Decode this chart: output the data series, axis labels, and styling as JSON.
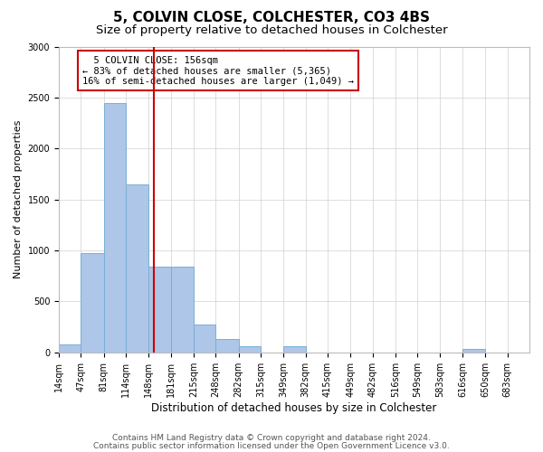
{
  "title1": "5, COLVIN CLOSE, COLCHESTER, CO3 4BS",
  "title2": "Size of property relative to detached houses in Colchester",
  "xlabel": "Distribution of detached houses by size in Colchester",
  "ylabel": "Number of detached properties",
  "footer1": "Contains HM Land Registry data © Crown copyright and database right 2024.",
  "footer2": "Contains public sector information licensed under the Open Government Licence v3.0.",
  "annotation_line1": "  5 COLVIN CLOSE: 156sqm",
  "annotation_line2": "← 83% of detached houses are smaller (5,365)",
  "annotation_line3": "16% of semi-detached houses are larger (1,049) →",
  "property_line_x": 156,
  "bar_edges": [
    14,
    47,
    81,
    114,
    148,
    181,
    215,
    248,
    282,
    315,
    349,
    382,
    415,
    449,
    482,
    516,
    549,
    583,
    616,
    650,
    683
  ],
  "bar_heights": [
    75,
    975,
    2450,
    1650,
    840,
    840,
    270,
    135,
    60,
    0,
    60,
    0,
    0,
    0,
    0,
    0,
    0,
    0,
    30,
    0,
    0
  ],
  "bar_color": "#aec6e8",
  "bar_edge_color": "#7aafd4",
  "vline_color": "#cc0000",
  "annotation_box_color": "#cc0000",
  "grid_color": "#d0d0d0",
  "ylim": [
    0,
    3000
  ],
  "yticks": [
    0,
    500,
    1000,
    1500,
    2000,
    2500,
    3000
  ],
  "bg_color": "#ffffff",
  "title1_fontsize": 11,
  "title2_fontsize": 9.5,
  "xlabel_fontsize": 8.5,
  "ylabel_fontsize": 8,
  "tick_fontsize": 7,
  "footer_fontsize": 6.5,
  "annotation_fontsize": 7.5
}
